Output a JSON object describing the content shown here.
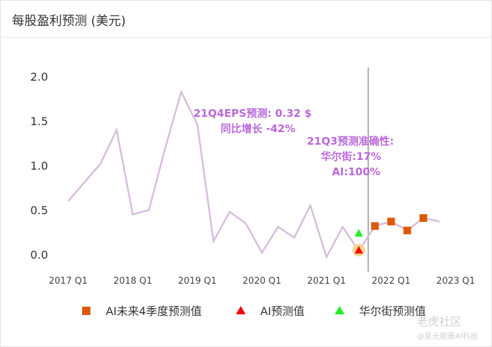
{
  "header": {
    "title": "每股盈利预测 (美元)"
  },
  "watermark": {
    "line1": "老虎社区",
    "line2": "@星光眼景AI科技"
  },
  "annotations": {
    "eps_line1": "21Q4EPS预测:  0.32 $",
    "eps_line2": "同比增长 -42%",
    "acc_line1": "21Q3预测准确性:",
    "acc_line2": "华尔街:17%",
    "acc_line3": "AI:100%"
  },
  "colors": {
    "history_line": "#d7bcdc",
    "future_marker": "#dd5a0c",
    "ai_marker": "#ff0000",
    "street_marker": "#22ee22",
    "annotation_text": "#b968dc",
    "highlight": "#f3d48c",
    "divider": "#aaaaaa"
  },
  "chart_data": {
    "type": "line",
    "title": "",
    "xlabel": "",
    "ylabel": "",
    "ylim": [
      0.0,
      2.0
    ],
    "yticks": [
      "2.0",
      "1.5",
      "1.0",
      "0.5",
      "0.0"
    ],
    "xticks": [
      "2017 Q1",
      "2018 Q1",
      "2019 Q1",
      "2020 Q1",
      "2021 Q1",
      "2022 Q1",
      "2023 Q1"
    ],
    "grid": false,
    "legend_position": "bottom",
    "history": {
      "x": [
        "2017 Q1",
        "2017 Q2",
        "2017 Q3",
        "2017 Q4",
        "2018 Q1",
        "2018 Q2",
        "2018 Q3",
        "2018 Q4",
        "2019 Q1",
        "2019 Q2",
        "2019 Q3",
        "2019 Q4",
        "2020 Q1",
        "2020 Q2",
        "2020 Q3",
        "2020 Q4",
        "2021 Q1",
        "2021 Q2",
        "2021 Q3",
        "2021 Q4",
        "2022 Q1",
        "2022 Q2",
        "2022 Q3",
        "2022 Q4"
      ],
      "values": [
        0.6,
        0.81,
        1.02,
        1.4,
        0.45,
        0.5,
        1.19,
        1.83,
        1.46,
        0.15,
        0.48,
        0.35,
        0.02,
        0.31,
        0.19,
        0.55,
        -0.03,
        0.31,
        0.04,
        0.32,
        0.37,
        0.27,
        0.41,
        0.37
      ]
    },
    "series": [
      {
        "name": "AI未来4季度预测值",
        "marker": "square",
        "x": [
          "2021 Q4",
          "2022 Q1",
          "2022 Q2",
          "2022 Q3"
        ],
        "values": [
          0.32,
          0.37,
          0.27,
          0.41
        ]
      },
      {
        "name": "AI预测值",
        "marker": "triangle",
        "x": [
          "2021 Q3"
        ],
        "values": [
          0.05
        ]
      },
      {
        "name": "华尔街预测值",
        "marker": "triangle",
        "x": [
          "2021 Q3"
        ],
        "values": [
          0.24
        ]
      }
    ],
    "forecast_start": "2021 Q4"
  }
}
